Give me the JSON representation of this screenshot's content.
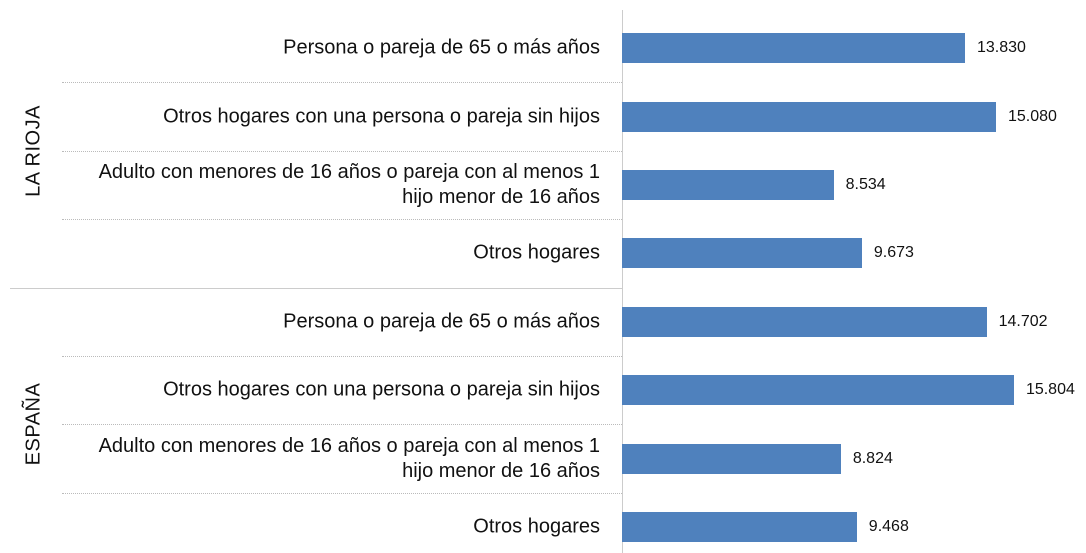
{
  "chart_data": {
    "type": "bar",
    "orientation": "horizontal",
    "color": "#4f81bd",
    "groups": [
      {
        "name": "LA RIOJA",
        "categories": [
          "Persona o pareja de 65 o más años",
          "Otros hogares con una persona o pareja sin hijos",
          "Adulto con menores de 16 años o pareja con al menos 1 hijo menor de 16 años",
          "Otros hogares"
        ],
        "values": [
          13830,
          15080,
          8534,
          9673
        ],
        "value_labels": [
          "13.830",
          "15.080",
          "8.534",
          "9.673"
        ]
      },
      {
        "name": "ESPAÑA",
        "categories": [
          "Persona o pareja de 65 o más años",
          "Otros hogares con una persona o pareja sin hijos",
          "Adulto con menores de 16 años o pareja con al menos 1 hijo menor de 16 años",
          "Otros hogares"
        ],
        "values": [
          14702,
          15804,
          8824,
          9468
        ],
        "value_labels": [
          "14.702",
          "15.804",
          "8.824",
          "9.468"
        ]
      }
    ]
  }
}
